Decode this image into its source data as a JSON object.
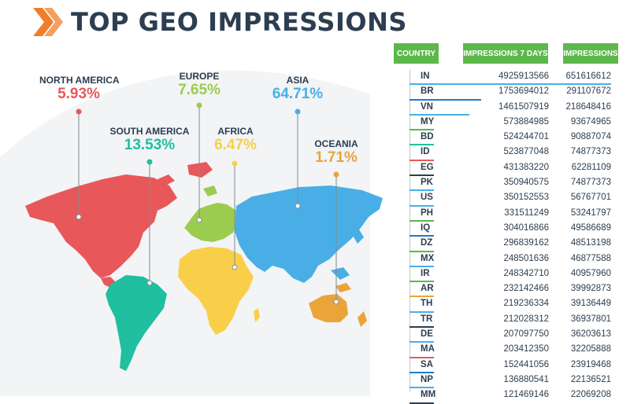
{
  "header": {
    "title": "TOP GEO IMPRESSIONS",
    "accent": "#f07d2a",
    "title_color": "#2c3e50"
  },
  "map": {
    "regions": [
      {
        "name": "NORTH AMERICA",
        "percent": "5.93%",
        "color": "#e8585b"
      },
      {
        "name": "SOUTH AMERICA",
        "percent": "13.53%",
        "color": "#1fbf9f"
      },
      {
        "name": "EUROPE",
        "percent": "7.65%",
        "color": "#9ccc4f"
      },
      {
        "name": "AFRICA",
        "percent": "6.47%",
        "color": "#f9cf4a"
      },
      {
        "name": "ASIA",
        "percent": "64.71%",
        "color": "#4aaee6"
      },
      {
        "name": "OCEANIA",
        "percent": "1.71%",
        "color": "#eba43a"
      }
    ]
  },
  "table": {
    "headers": [
      "COUNTRY",
      "IMPRESSIONS 7 DAYS",
      "IMPRESSIONS"
    ],
    "header_color": "#5cb84a",
    "rows": [
      {
        "country": "IN",
        "imp7": "4925913566",
        "imp": "651616612",
        "color": "#4aaee6"
      },
      {
        "country": "BR",
        "imp7": "1753694012",
        "imp": "291107672",
        "color": "#1a7bd0"
      },
      {
        "country": "VN",
        "imp7": "1461507919",
        "imp": "218648416",
        "color": "#4aaee6"
      },
      {
        "country": "MY",
        "imp7": "573884985",
        "imp": "93674965",
        "color": "#5cb84a"
      },
      {
        "country": "BD",
        "imp7": "524244701",
        "imp": "90887074",
        "color": "#1fbf9f"
      },
      {
        "country": "ID",
        "imp7": "523877048",
        "imp": "74877373",
        "color": "#e8585b"
      },
      {
        "country": "EG",
        "imp7": "431383220",
        "imp": "62281109",
        "color": "#2c3e50"
      },
      {
        "country": "PK",
        "imp7": "350940575",
        "imp": "74877373",
        "color": "#4aaee6"
      },
      {
        "country": "US",
        "imp7": "350152553",
        "imp": "56767701",
        "color": "#4aaee6"
      },
      {
        "country": "PH",
        "imp7": "331511249",
        "imp": "53241797",
        "color": "#5cb84a"
      },
      {
        "country": "IQ",
        "imp7": "304016866",
        "imp": "49586689",
        "color": "#1a7bd0"
      },
      {
        "country": "DZ",
        "imp7": "296839162",
        "imp": "48513198",
        "color": "#5cb84a"
      },
      {
        "country": "MX",
        "imp7": "248501636",
        "imp": "46877588",
        "color": "#4aaee6"
      },
      {
        "country": "IR",
        "imp7": "248342710",
        "imp": "40957960",
        "color": "#5cb84a"
      },
      {
        "country": "AR",
        "imp7": "232142466",
        "imp": "39992873",
        "color": "#eba43a"
      },
      {
        "country": "TH",
        "imp7": "219236334",
        "imp": "39136449",
        "color": "#4aaee6"
      },
      {
        "country": "TR",
        "imp7": "212028312",
        "imp": "36937801",
        "color": "#2c3e50"
      },
      {
        "country": "DE",
        "imp7": "207097750",
        "imp": "36203613",
        "color": "#4aaee6"
      },
      {
        "country": "MA",
        "imp7": "203412350",
        "imp": "32205888",
        "color": "#e8585b"
      },
      {
        "country": "SA",
        "imp7": "152441056",
        "imp": "23919468",
        "color": "#1a7bd0"
      },
      {
        "country": "NP",
        "imp7": "136880541",
        "imp": "22136521",
        "color": "#4aaee6"
      },
      {
        "country": "MM",
        "imp7": "121469146",
        "imp": "22069208",
        "color": "#2c3e50"
      }
    ]
  },
  "chart_data": {
    "type": "table",
    "title": "TOP GEO IMPRESSIONS",
    "regions": [
      {
        "name": "NORTH AMERICA",
        "percent": 5.93
      },
      {
        "name": "SOUTH AMERICA",
        "percent": 13.53
      },
      {
        "name": "EUROPE",
        "percent": 7.65
      },
      {
        "name": "AFRICA",
        "percent": 6.47
      },
      {
        "name": "ASIA",
        "percent": 64.71
      },
      {
        "name": "OCEANIA",
        "percent": 1.71
      }
    ],
    "columns": [
      "COUNTRY",
      "IMPRESSIONS 7 DAYS",
      "IMPRESSIONS"
    ],
    "rows": [
      [
        "IN",
        4925913566,
        651616612
      ],
      [
        "BR",
        1753694012,
        291107672
      ],
      [
        "VN",
        1461507919,
        218648416
      ],
      [
        "MY",
        573884985,
        93674965
      ],
      [
        "BD",
        524244701,
        90887074
      ],
      [
        "ID",
        523877048,
        74877373
      ],
      [
        "EG",
        431383220,
        62281109
      ],
      [
        "PK",
        350940575,
        74877373
      ],
      [
        "US",
        350152553,
        56767701
      ],
      [
        "PH",
        331511249,
        53241797
      ],
      [
        "IQ",
        304016866,
        49586689
      ],
      [
        "DZ",
        296839162,
        48513198
      ],
      [
        "MX",
        248501636,
        46877588
      ],
      [
        "IR",
        248342710,
        40957960
      ],
      [
        "AR",
        232142466,
        39992873
      ],
      [
        "TH",
        219236334,
        39136449
      ],
      [
        "TR",
        212028312,
        36937801
      ],
      [
        "DE",
        207097750,
        36203613
      ],
      [
        "MA",
        203412350,
        32205888
      ],
      [
        "SA",
        152441056,
        23919468
      ],
      [
        "NP",
        136880541,
        22136521
      ],
      [
        "MM",
        121469146,
        22069208
      ]
    ]
  }
}
